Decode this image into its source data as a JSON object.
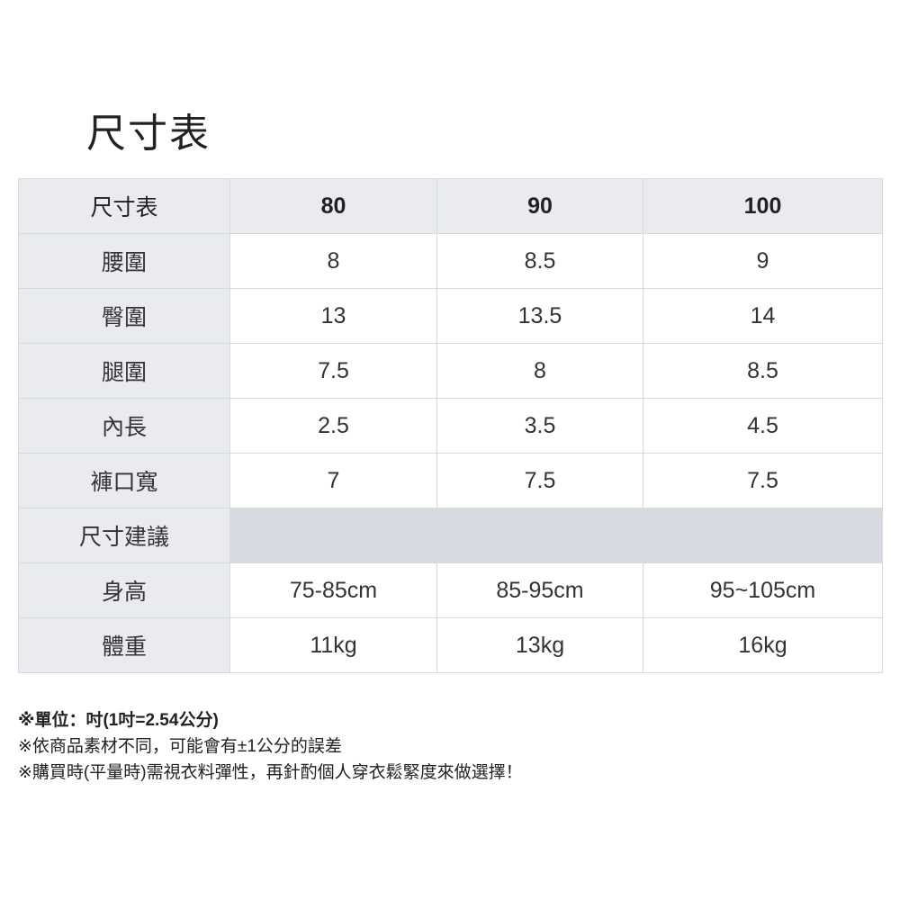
{
  "title": "尺寸表",
  "table": {
    "header": [
      "尺寸表",
      "80",
      "90",
      "100"
    ],
    "rows": [
      [
        "腰圍",
        "8",
        "8.5",
        "9"
      ],
      [
        "臀圍",
        "13",
        "13.5",
        "14"
      ],
      [
        "腿圍",
        "7.5",
        "8",
        "8.5"
      ],
      [
        "內長",
        "2.5",
        "3.5",
        "4.5"
      ],
      [
        "褲口寬",
        "7",
        "7.5",
        "7.5"
      ]
    ],
    "section_label": "尺寸建議",
    "suggest_rows": [
      [
        "身高",
        "75-85cm",
        "85-95cm",
        "95~105cm"
      ],
      [
        "體重",
        "11kg",
        "13kg",
        "16kg"
      ]
    ]
  },
  "notes": [
    "※單位：吋(1吋=2.54公分)",
    "※依商品素材不同，可能會有±1公分的誤差",
    "※購買時(平量時)需視衣料彈性，再針酌個人穿衣鬆緊度來做選擇！"
  ],
  "colors": {
    "header_bg": "#e9ebef",
    "merged_bg": "#d5d9e0",
    "border": "#d6d9de"
  }
}
